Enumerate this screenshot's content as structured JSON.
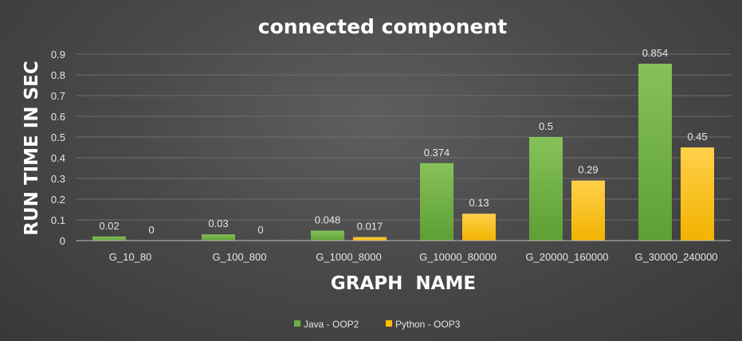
{
  "chart_data": {
    "type": "bar",
    "title": "connected component",
    "xlabel": "GRAPH  NAME",
    "ylabel": "RUN TIME IN SEC",
    "categories": [
      "G_10_80",
      "G_100_800",
      "G_1000_8000",
      "G_10000_80000",
      "G_20000_160000",
      "G_30000_240000"
    ],
    "series": [
      {
        "name": "Java - OOP2",
        "values": [
          0.02,
          0.03,
          0.048,
          0.374,
          0.5,
          0.854
        ],
        "labels": [
          "0.02",
          "0.03",
          "0.048",
          "0.374",
          "0.5",
          "0.854"
        ],
        "color": "#70ad47"
      },
      {
        "name": "Python - OOP3",
        "values": [
          0,
          0,
          0.017,
          0.13,
          0.29,
          0.45
        ],
        "labels": [
          "0",
          "0",
          "0.017",
          "0.13",
          "0.29",
          "0.45"
        ],
        "color": "#ffc000"
      }
    ],
    "ylim": [
      0,
      0.9
    ],
    "yticks": [
      "0",
      "0.1",
      "0.2",
      "0.3",
      "0.4",
      "0.5",
      "0.6",
      "0.7",
      "0.8",
      "0.9"
    ],
    "grid": true,
    "legend_position": "bottom"
  }
}
